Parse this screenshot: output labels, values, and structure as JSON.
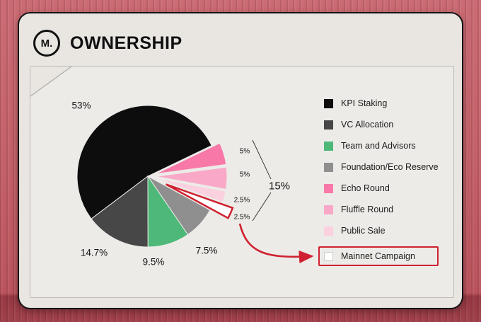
{
  "header": {
    "logo_text": "M.",
    "title": "OWNERSHIP"
  },
  "colors": {
    "accent_red": "#cf2130",
    "card_bg": "#e9e6e2",
    "panel_bg": "#edebe8",
    "page_bg": "#c35f67"
  },
  "chart_data": {
    "type": "pie",
    "title": "OWNERSHIP",
    "legend_position": "right",
    "start_angle_deg": 233,
    "group_annotation": "15%",
    "slices": [
      {
        "id": "kpi-staking",
        "label": "KPI Staking",
        "value": 53,
        "display": "53%",
        "color": "#0d0d0d",
        "explode": 0
      },
      {
        "id": "echo-round",
        "label": "Echo Round",
        "value": 5,
        "display": "5%",
        "color": "#f878a8",
        "explode": 12
      },
      {
        "id": "fluffle-round",
        "label": "Fluffle Round",
        "value": 5,
        "display": "5%",
        "color": "#f9a9c7",
        "explode": 12
      },
      {
        "id": "public-sale",
        "label": "Public Sale",
        "value": 2.5,
        "display": "2.5%",
        "color": "#fbd0df",
        "explode": 12
      },
      {
        "id": "mainnet-campaign",
        "label": "Mainnet Campaign",
        "value": 2.5,
        "display": "2.5%",
        "color": "#ffffff",
        "explode": 28,
        "stroke": "#cf2130"
      },
      {
        "id": "foundation-eco-reserve",
        "label": "Foundation/Eco Reserve",
        "value": 7.5,
        "display": "7.5%",
        "color": "#8f8f8f",
        "explode": 0
      },
      {
        "id": "team-and-advisors",
        "label": "Team and Advisors",
        "value": 9.5,
        "display": "9.5%",
        "color": "#4db878",
        "explode": 0
      },
      {
        "id": "vc-allocation",
        "label": "VC Allocation",
        "value": 14.7,
        "display": "14.7%",
        "color": "#474747",
        "explode": 0
      }
    ]
  },
  "legend": {
    "items": [
      {
        "label": "KPI Staking",
        "color": "#0d0d0d",
        "highlight": false
      },
      {
        "label": "VC Allocation",
        "color": "#474747",
        "highlight": false
      },
      {
        "label": "Team and Advisors",
        "color": "#4db878",
        "highlight": false
      },
      {
        "label": "Foundation/Eco Reserve",
        "color": "#8f8f8f",
        "highlight": false
      },
      {
        "label": "Echo Round",
        "color": "#f878a8",
        "highlight": false
      },
      {
        "label": "Fluffle Round",
        "color": "#f9a9c7",
        "highlight": false
      },
      {
        "label": "Public Sale",
        "color": "#fbd0df",
        "highlight": false
      },
      {
        "label": "Mainnet Campaign",
        "color": "#ffffff",
        "highlight": true,
        "swatch_border": true
      }
    ]
  }
}
